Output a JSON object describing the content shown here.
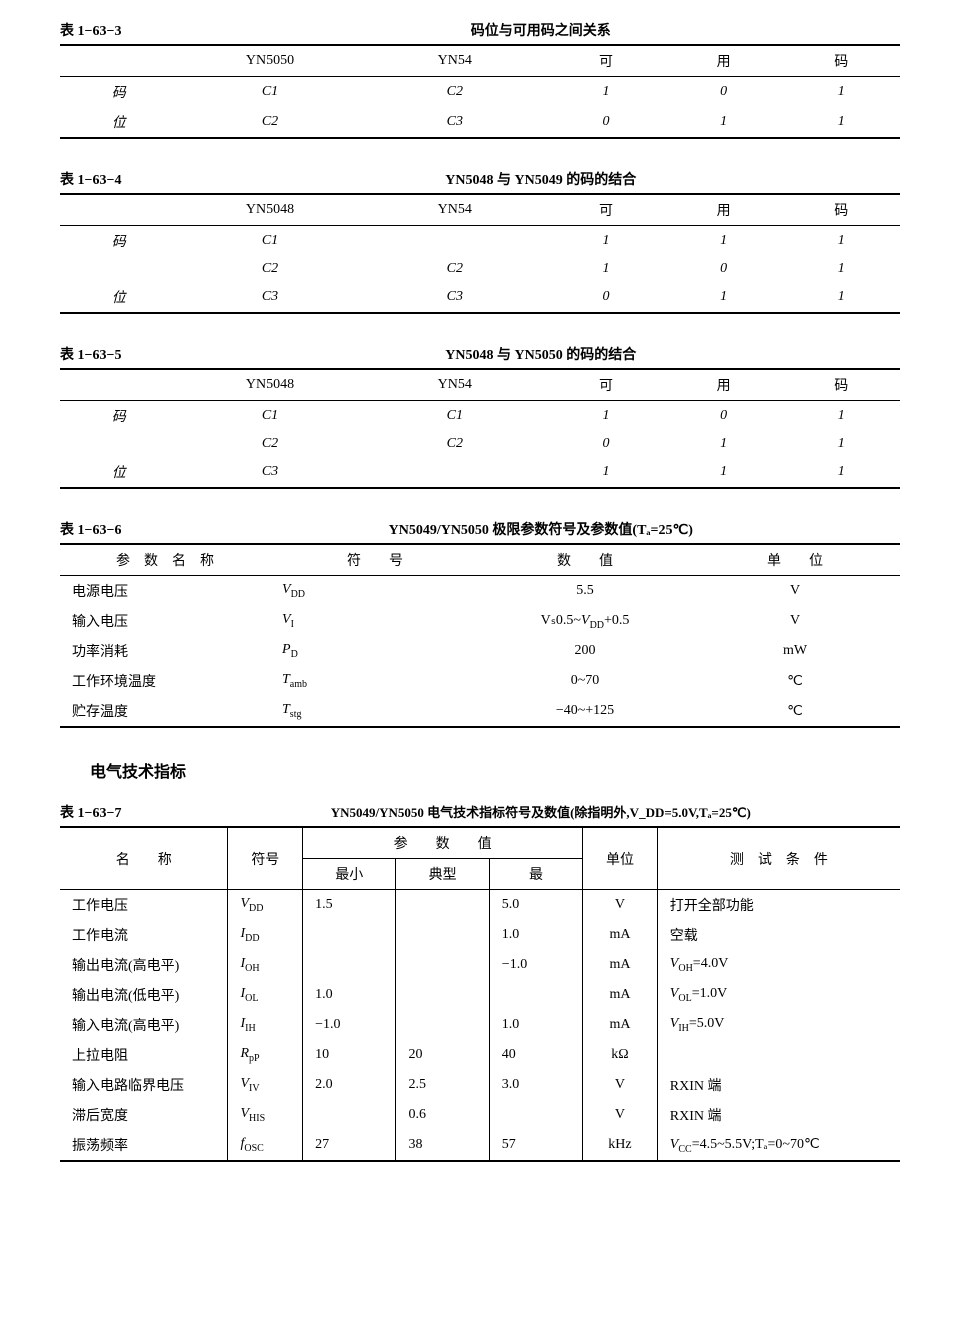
{
  "tables": {
    "t3": {
      "label": "表 1−63−3",
      "title": "码位与可用码之间关系",
      "headers": [
        "",
        "YN5050",
        "YN54",
        "可",
        "用",
        "码"
      ],
      "rows": [
        [
          "码",
          "C1",
          "C2",
          "1",
          "0",
          "1"
        ],
        [
          "位",
          "C2",
          "C3",
          "0",
          "1",
          "1"
        ]
      ]
    },
    "t4": {
      "label": "表 1−63−4",
      "title": "YN5048 与 YN5049 的码的结合",
      "headers": [
        "",
        "YN5048",
        "YN54",
        "可",
        "用",
        "码"
      ],
      "rows": [
        [
          "码",
          "C1",
          "",
          "1",
          "1",
          "1"
        ],
        [
          "",
          "C2",
          "C2",
          "1",
          "0",
          "1"
        ],
        [
          "位",
          "C3",
          "C3",
          "0",
          "1",
          "1"
        ]
      ]
    },
    "t5": {
      "label": "表 1−63−5",
      "title": "YN5048 与 YN5050 的码的结合",
      "headers": [
        "",
        "YN5048",
        "YN54",
        "可",
        "用",
        "码"
      ],
      "rows": [
        [
          "码",
          "C1",
          "C1",
          "1",
          "0",
          "1"
        ],
        [
          "",
          "C2",
          "C2",
          "0",
          "1",
          "1"
        ],
        [
          "位",
          "C3",
          "",
          "1",
          "1",
          "1"
        ]
      ]
    },
    "t6": {
      "label": "表 1−63−6",
      "title": "YN5049/YN5050 极限参数符号及参数值(Tₐ=25℃)",
      "headers": [
        "参　数　名　称",
        "符　　号",
        "数　　值",
        "单　　位"
      ],
      "rows": [
        {
          "name": "电源电压",
          "sym": "V",
          "sub": "DD",
          "val": "5.5",
          "unit": "V"
        },
        {
          "name": "输入电压",
          "sym": "V",
          "sub": "I",
          "val": "Vₛ0.5~V_DD+0.5",
          "unit": "V"
        },
        {
          "name": "功率消耗",
          "sym": "P",
          "sub": "D",
          "val": "200",
          "unit": "mW"
        },
        {
          "name": "工作环境温度",
          "sym": "T",
          "sub": "amb",
          "val": "0~70",
          "unit": "℃"
        },
        {
          "name": "贮存温度",
          "sym": "T",
          "sub": "stg",
          "val": "−40~+125",
          "unit": "℃"
        }
      ]
    },
    "section_heading": "电气技术指标",
    "t7": {
      "label": "表 1−63−7",
      "title": "YN5049/YN5050 电气技术指标符号及数值(除指明外,V_DD=5.0V,Tₐ=25℃)",
      "headers": {
        "name": "名　　称",
        "sym": "符号",
        "group": "参　　数　　值",
        "min": "最小",
        "typ": "典型",
        "max": "最 ",
        "unit": "单位",
        "cond": "测　试　条　件"
      },
      "rows": [
        {
          "name": "工作电压",
          "sym": "V",
          "sub": "DD",
          "min": "1.5",
          "typ": "",
          "max": "5.0",
          "unit": "V",
          "cond": "打开全部功能"
        },
        {
          "name": "工作电流",
          "sym": "I",
          "sub": "DD",
          "min": "",
          "typ": "",
          "max": "1.0",
          "unit": "mA",
          "cond": "空载"
        },
        {
          "name": "输出电流(高电平)",
          "sym": "I",
          "sub": "OH",
          "min": "",
          "typ": "",
          "max": "−1.0",
          "unit": "mA",
          "cond": "V_OH=4.0V"
        },
        {
          "name": "输出电流(低电平)",
          "sym": "I",
          "sub": "OL",
          "min": "1.0",
          "typ": "",
          "max": "",
          "unit": "mA",
          "cond": "V_OL=1.0V"
        },
        {
          "name": "输入电流(高电平)",
          "sym": "I",
          "sub": "IH",
          "min": "−1.0",
          "typ": "",
          "max": "1.0",
          "unit": "mA",
          "cond": "V_IH=5.0V"
        },
        {
          "name": "上拉电阻",
          "sym": "R",
          "sub": "pP",
          "min": "10",
          "typ": "20",
          "max": "40",
          "unit": "kΩ",
          "cond": ""
        },
        {
          "name": "输入电路临界电压",
          "sym": "V",
          "sub": "IV",
          "min": "2.0",
          "typ": "2.5",
          "max": "3.0",
          "unit": "V",
          "cond": "RXIN 端"
        },
        {
          "name": "滞后宽度",
          "sym": "V",
          "sub": "HIS",
          "min": "",
          "typ": "0.6",
          "max": "",
          "unit": "V",
          "cond": "RXIN 端"
        },
        {
          "name": "振荡频率",
          "sym": "f",
          "sub": "OSC",
          "min": "27",
          "typ": "38",
          "max": "57",
          "unit": "kHz",
          "cond": "V_CC=4.5~5.5V;Tₐ=0~70℃"
        }
      ]
    }
  }
}
